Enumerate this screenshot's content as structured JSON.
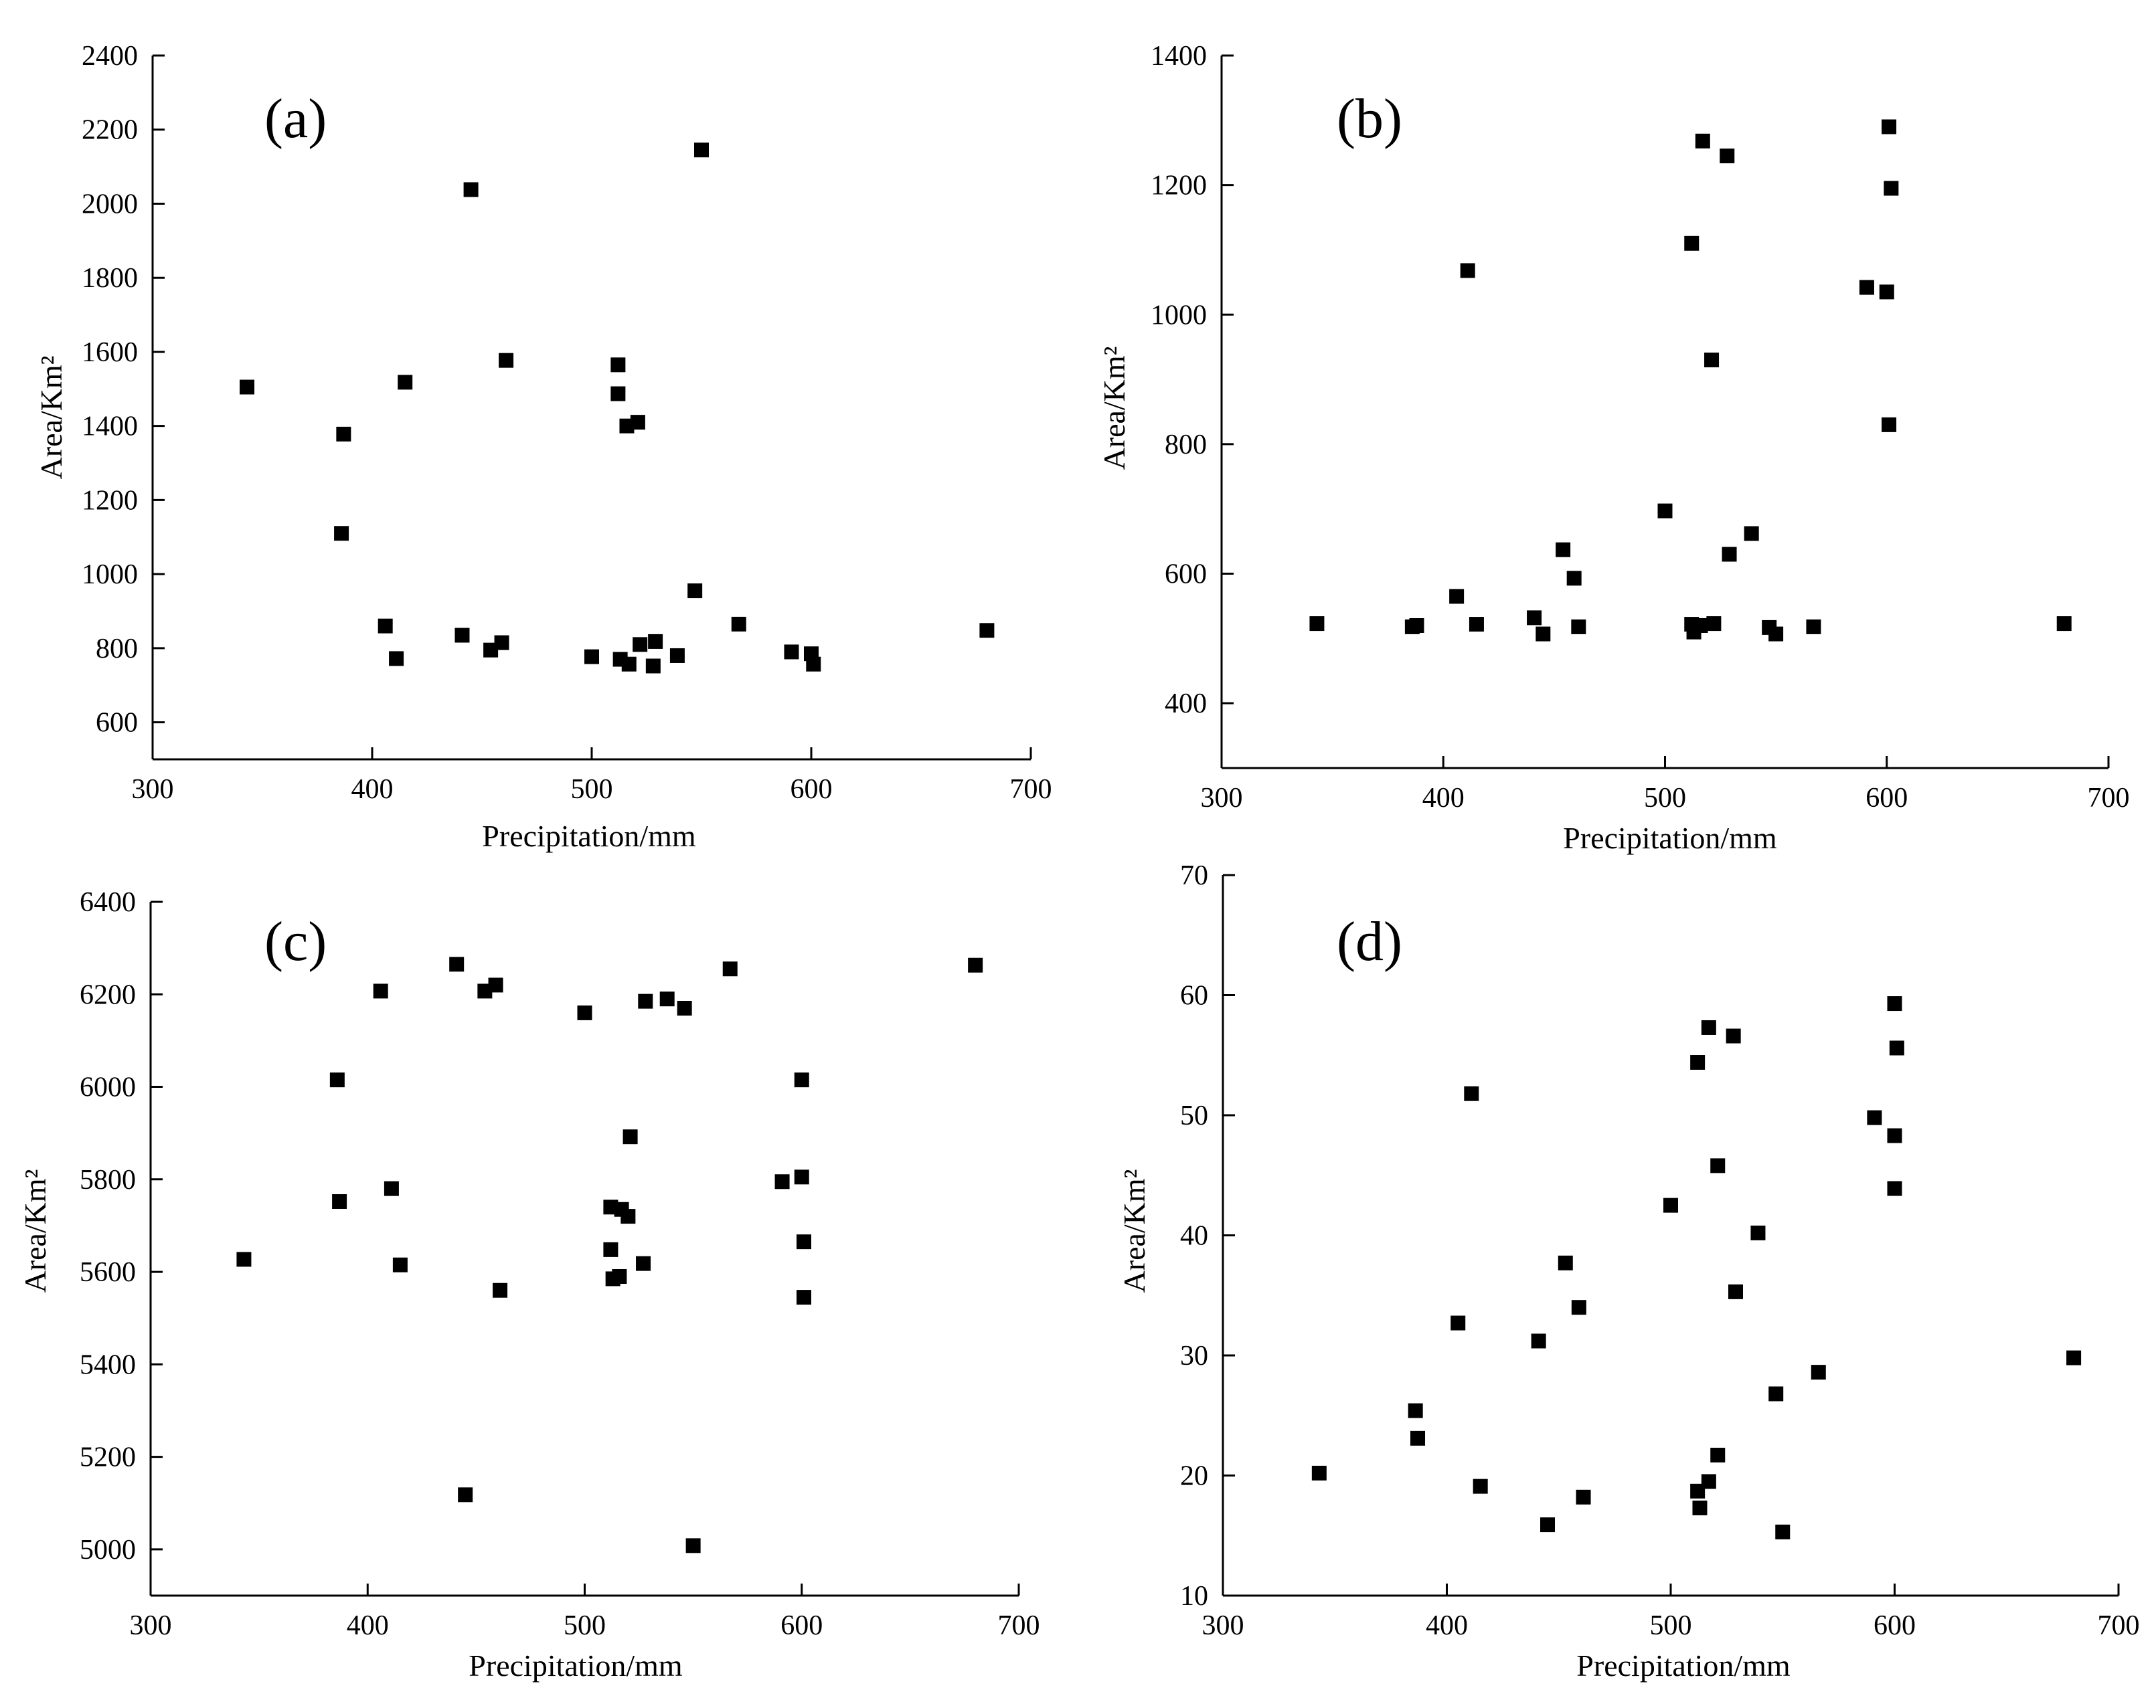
{
  "chart_data": [
    {
      "type": "scatter",
      "panel_label": "(a)",
      "xlabel": "Precipitation/mm",
      "ylabel": "Area/Km²",
      "xlim": [
        300,
        700
      ],
      "ylim": [
        500,
        2400
      ],
      "xticks": [
        300,
        400,
        500,
        600,
        700
      ],
      "yticks": [
        600,
        800,
        1000,
        1200,
        1400,
        1600,
        1800,
        2000,
        2200,
        2400
      ],
      "points": [
        [
          343,
          1505
        ],
        [
          386,
          1110
        ],
        [
          387,
          1378
        ],
        [
          406,
          860
        ],
        [
          411,
          772
        ],
        [
          415,
          1518
        ],
        [
          441,
          835
        ],
        [
          445,
          2038
        ],
        [
          454,
          795
        ],
        [
          459,
          815
        ],
        [
          461,
          1577
        ],
        [
          500,
          777
        ],
        [
          512,
          1565
        ],
        [
          512,
          1487
        ],
        [
          513,
          770
        ],
        [
          516,
          1400
        ],
        [
          517,
          757
        ],
        [
          521,
          1410
        ],
        [
          522,
          810
        ],
        [
          528,
          752
        ],
        [
          529,
          818
        ],
        [
          539,
          780
        ],
        [
          547,
          955
        ],
        [
          550,
          2145
        ],
        [
          567,
          865
        ],
        [
          591,
          790
        ],
        [
          600,
          785
        ],
        [
          601,
          757
        ],
        [
          680,
          848
        ]
      ]
    },
    {
      "type": "scatter",
      "panel_label": "(b)",
      "xlabel": "Precipitation/mm",
      "ylabel": "Area/Km²",
      "xlim": [
        300,
        700
      ],
      "ylim": [
        300,
        1400
      ],
      "xticks": [
        300,
        400,
        500,
        600,
        700
      ],
      "yticks": [
        400,
        600,
        800,
        1000,
        1200,
        1400
      ],
      "points": [
        [
          343,
          523
        ],
        [
          386,
          518
        ],
        [
          388,
          520
        ],
        [
          406,
          565
        ],
        [
          411,
          1068
        ],
        [
          415,
          522
        ],
        [
          441,
          532
        ],
        [
          445,
          507
        ],
        [
          454,
          637
        ],
        [
          459,
          593
        ],
        [
          461,
          518
        ],
        [
          500,
          697
        ],
        [
          512,
          1110
        ],
        [
          512,
          522
        ],
        [
          513,
          510
        ],
        [
          516,
          520
        ],
        [
          517,
          1268
        ],
        [
          521,
          930
        ],
        [
          522,
          523
        ],
        [
          528,
          1245
        ],
        [
          529,
          630
        ],
        [
          539,
          662
        ],
        [
          547,
          517
        ],
        [
          550,
          507
        ],
        [
          567,
          518
        ],
        [
          591,
          1042
        ],
        [
          600,
          1035
        ],
        [
          601,
          830
        ],
        [
          601,
          1290
        ],
        [
          602,
          1195
        ],
        [
          680,
          523
        ]
      ]
    },
    {
      "type": "scatter",
      "panel_label": "(c)",
      "xlabel": "Precipitation/mm",
      "ylabel": "Area/Km²",
      "xlim": [
        300,
        700
      ],
      "ylim": [
        4900,
        6400
      ],
      "xticks": [
        300,
        400,
        500,
        600,
        700
      ],
      "yticks": [
        5000,
        5200,
        5400,
        5600,
        5800,
        6000,
        6200,
        6400
      ],
      "points": [
        [
          343,
          5627
        ],
        [
          386,
          6015
        ],
        [
          387,
          5752
        ],
        [
          406,
          6207
        ],
        [
          411,
          5780
        ],
        [
          415,
          5615
        ],
        [
          441,
          6265
        ],
        [
          445,
          5118
        ],
        [
          454,
          6207
        ],
        [
          459,
          6220
        ],
        [
          461,
          5560
        ],
        [
          500,
          6160
        ],
        [
          512,
          5648
        ],
        [
          512,
          5740
        ],
        [
          513,
          5585
        ],
        [
          516,
          5590
        ],
        [
          517,
          5735
        ],
        [
          520,
          5720
        ],
        [
          521,
          5892
        ],
        [
          527,
          5618
        ],
        [
          528,
          6185
        ],
        [
          538,
          6190
        ],
        [
          546,
          6170
        ],
        [
          550,
          5008
        ],
        [
          567,
          6255
        ],
        [
          591,
          5795
        ],
        [
          600,
          6015
        ],
        [
          600,
          5805
        ],
        [
          601,
          5545
        ],
        [
          601,
          5665
        ],
        [
          680,
          6263
        ]
      ]
    },
    {
      "type": "scatter",
      "panel_label": "(d)",
      "xlabel": "Precipitation/mm",
      "ylabel": "Area/Km²",
      "xlim": [
        300,
        700
      ],
      "ylim": [
        10,
        70
      ],
      "xticks": [
        300,
        400,
        500,
        600,
        700
      ],
      "yticks": [
        10,
        20,
        30,
        40,
        50,
        60,
        70
      ],
      "points": [
        [
          343,
          20.2
        ],
        [
          386,
          25.4
        ],
        [
          387,
          23.1
        ],
        [
          405,
          32.7
        ],
        [
          411,
          51.8
        ],
        [
          415,
          19.1
        ],
        [
          441,
          31.2
        ],
        [
          445,
          15.9
        ],
        [
          453,
          37.7
        ],
        [
          459,
          34.0
        ],
        [
          461,
          18.2
        ],
        [
          500,
          42.5
        ],
        [
          512,
          54.4
        ],
        [
          512,
          18.7
        ],
        [
          513,
          17.3
        ],
        [
          517,
          57.3
        ],
        [
          517,
          19.5
        ],
        [
          521,
          21.7
        ],
        [
          521,
          45.8
        ],
        [
          528,
          56.6
        ],
        [
          529,
          35.3
        ],
        [
          539,
          40.2
        ],
        [
          547,
          26.8
        ],
        [
          550,
          15.3
        ],
        [
          566,
          28.6
        ],
        [
          591,
          49.8
        ],
        [
          600,
          59.3
        ],
        [
          600,
          43.9
        ],
        [
          600,
          48.3
        ],
        [
          601,
          55.6
        ],
        [
          680,
          29.8
        ]
      ]
    }
  ]
}
